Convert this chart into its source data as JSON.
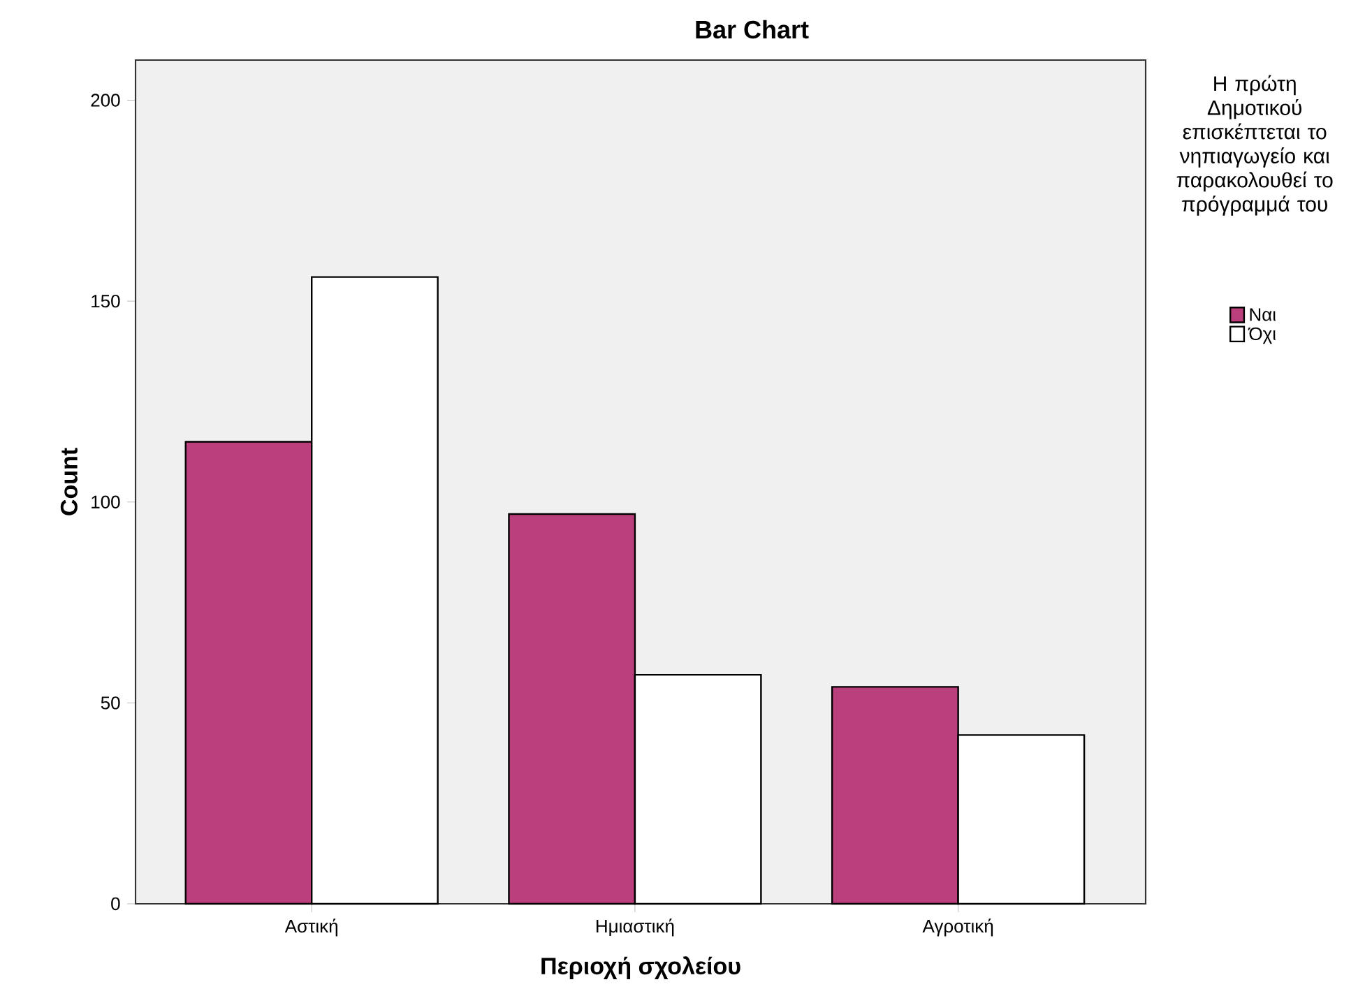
{
  "chart_data": {
    "type": "bar",
    "title": "Bar Chart",
    "xlabel": "Περιοχή σχολείου",
    "ylabel": "Count",
    "legend_title": "Η πρώτη Δημοτικού επισκέπτεται το νηπιαγωγείο και παρακολουθεί το πρόγραμμά του",
    "categories": [
      "Αστική",
      "Ημιαστική",
      "Αγροτική"
    ],
    "series": [
      {
        "name": "Ναι",
        "color": "#bb3f7c",
        "values": [
          115,
          97,
          54
        ]
      },
      {
        "name": "Όχι",
        "color": "#ffffff",
        "values": [
          156,
          57,
          42
        ]
      }
    ],
    "ylim": [
      0,
      210
    ],
    "yticks": [
      0,
      50,
      100,
      150,
      200
    ],
    "legend": "right"
  }
}
